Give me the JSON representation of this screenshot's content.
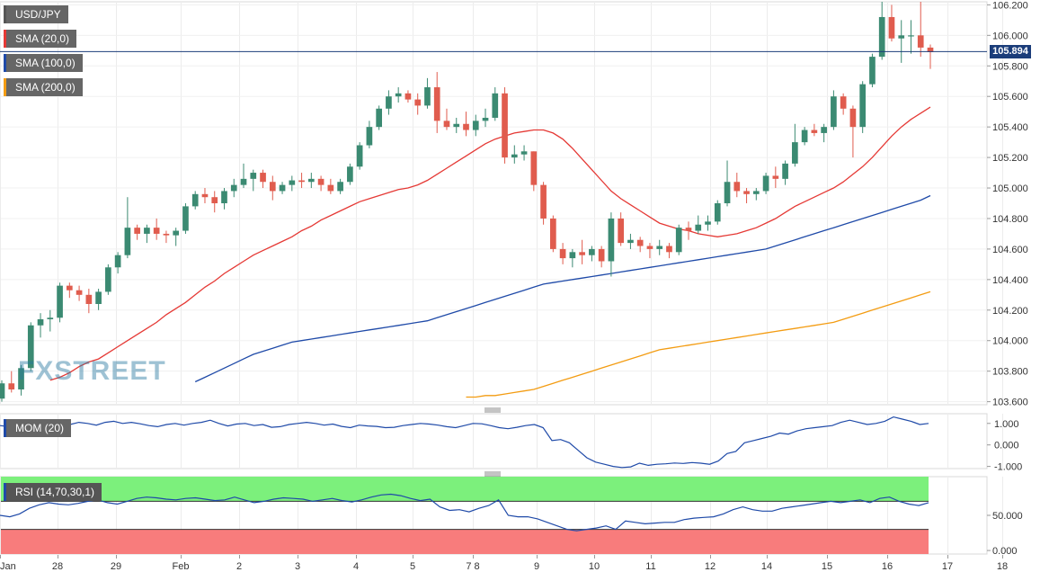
{
  "chart_data": [
    {
      "type": "candlestick",
      "panel": "price",
      "title": "USD/JPY",
      "indicators": [
        {
          "name": "SMA (20,0)",
          "color": "#e53935"
        },
        {
          "name": "SMA (100,0)",
          "color": "#1f4aa8"
        },
        {
          "name": "SMA (200,0)",
          "color": "#f39c12"
        }
      ],
      "ylim": [
        103.58,
        106.22
      ],
      "y_ticks": [
        "106.200",
        "106.000",
        "105.800",
        "105.600",
        "105.400",
        "105.200",
        "105.000",
        "104.800",
        "104.600",
        "104.400",
        "104.200",
        "104.000",
        "103.800",
        "103.600"
      ],
      "x_ticks": [
        "Jan",
        "28",
        "29",
        "Feb",
        "2",
        "3",
        "4",
        "5",
        "7 8",
        "9",
        "10",
        "11",
        "12",
        "14",
        "15",
        "16",
        "17",
        "18"
      ],
      "current_price": "105.894",
      "up_color": "#3b8a72",
      "down_color": "#e05c4e",
      "candles": [
        [
          103.62,
          103.74,
          103.6,
          103.72
        ],
        [
          103.72,
          103.8,
          103.66,
          103.68
        ],
        [
          103.68,
          103.84,
          103.64,
          103.82
        ],
        [
          103.82,
          104.12,
          103.8,
          104.1
        ],
        [
          104.1,
          104.18,
          104.02,
          104.14
        ],
        [
          104.14,
          104.2,
          104.06,
          104.15
        ],
        [
          104.15,
          104.38,
          104.12,
          104.36
        ],
        [
          104.36,
          104.38,
          104.28,
          104.33
        ],
        [
          104.33,
          104.36,
          104.26,
          104.3
        ],
        [
          104.3,
          104.34,
          104.18,
          104.24
        ],
        [
          104.24,
          104.34,
          104.2,
          104.32
        ],
        [
          104.32,
          104.5,
          104.3,
          104.48
        ],
        [
          104.48,
          104.58,
          104.44,
          104.56
        ],
        [
          104.56,
          104.94,
          104.54,
          104.74
        ],
        [
          104.74,
          104.76,
          104.66,
          104.7
        ],
        [
          104.7,
          104.76,
          104.64,
          104.74
        ],
        [
          104.74,
          104.8,
          104.66,
          104.7
        ],
        [
          104.7,
          104.72,
          104.64,
          104.69
        ],
        [
          104.69,
          104.74,
          104.62,
          104.72
        ],
        [
          104.72,
          104.9,
          104.7,
          104.88
        ],
        [
          104.88,
          104.98,
          104.86,
          104.96
        ],
        [
          104.96,
          105.0,
          104.9,
          104.94
        ],
        [
          104.94,
          104.98,
          104.84,
          104.9
        ],
        [
          104.9,
          105.0,
          104.86,
          104.98
        ],
        [
          104.98,
          105.06,
          104.94,
          105.02
        ],
        [
          105.02,
          105.16,
          105.0,
          105.06
        ],
        [
          105.06,
          105.12,
          104.98,
          105.1
        ],
        [
          105.1,
          105.12,
          105.0,
          105.04
        ],
        [
          105.04,
          105.08,
          104.92,
          104.98
        ],
        [
          104.98,
          105.04,
          104.96,
          105.02
        ],
        [
          105.02,
          105.08,
          104.98,
          105.05
        ],
        [
          105.05,
          105.1,
          105.0,
          105.04
        ],
        [
          105.04,
          105.1,
          105.0,
          105.06
        ],
        [
          105.06,
          105.08,
          104.98,
          105.02
        ],
        [
          105.02,
          105.06,
          104.96,
          104.98
        ],
        [
          104.98,
          105.06,
          104.96,
          105.04
        ],
        [
          105.04,
          105.16,
          105.02,
          105.14
        ],
        [
          105.14,
          105.3,
          105.12,
          105.28
        ],
        [
          105.28,
          105.44,
          105.26,
          105.4
        ],
        [
          105.4,
          105.54,
          105.38,
          105.52
        ],
        [
          105.52,
          105.64,
          105.48,
          105.6
        ],
        [
          105.6,
          105.66,
          105.56,
          105.62
        ],
        [
          105.62,
          105.64,
          105.56,
          105.58
        ],
        [
          105.58,
          105.62,
          105.48,
          105.54
        ],
        [
          105.54,
          105.72,
          105.52,
          105.66
        ],
        [
          105.66,
          105.76,
          105.36,
          105.44
        ],
        [
          105.44,
          105.52,
          105.38,
          105.4
        ],
        [
          105.4,
          105.46,
          105.36,
          105.42
        ],
        [
          105.42,
          105.5,
          105.34,
          105.38
        ],
        [
          105.38,
          105.48,
          105.34,
          105.44
        ],
        [
          105.44,
          105.52,
          105.4,
          105.46
        ],
        [
          105.46,
          105.66,
          105.44,
          105.62
        ],
        [
          105.62,
          105.66,
          105.16,
          105.2
        ],
        [
          105.2,
          105.28,
          105.16,
          105.22
        ],
        [
          105.22,
          105.28,
          105.18,
          105.24
        ],
        [
          105.24,
          105.24,
          104.98,
          105.02
        ],
        [
          105.02,
          105.04,
          104.76,
          104.8
        ],
        [
          104.8,
          104.82,
          104.58,
          104.6
        ],
        [
          104.6,
          104.64,
          104.5,
          104.54
        ],
        [
          104.54,
          104.6,
          104.48,
          104.58
        ],
        [
          104.58,
          104.66,
          104.5,
          104.56
        ],
        [
          104.56,
          104.62,
          104.52,
          104.6
        ],
        [
          104.6,
          104.62,
          104.48,
          104.52
        ],
        [
          104.52,
          104.84,
          104.42,
          104.8
        ],
        [
          104.8,
          104.84,
          104.62,
          104.64
        ],
        [
          104.64,
          104.7,
          104.6,
          104.66
        ],
        [
          104.66,
          104.68,
          104.58,
          104.62
        ],
        [
          104.62,
          104.64,
          104.54,
          104.6
        ],
        [
          104.6,
          104.66,
          104.56,
          104.62
        ],
        [
          104.62,
          104.64,
          104.54,
          104.58
        ],
        [
          104.58,
          104.76,
          104.56,
          104.74
        ],
        [
          104.74,
          104.78,
          104.66,
          104.72
        ],
        [
          104.72,
          104.82,
          104.7,
          104.76
        ],
        [
          104.76,
          104.82,
          104.72,
          104.78
        ],
        [
          104.78,
          104.92,
          104.76,
          104.9
        ],
        [
          104.9,
          105.18,
          104.88,
          105.04
        ],
        [
          105.04,
          105.1,
          104.94,
          104.98
        ],
        [
          104.98,
          105.0,
          104.9,
          104.96
        ],
        [
          104.96,
          105.0,
          104.92,
          104.98
        ],
        [
          104.98,
          105.1,
          104.96,
          105.08
        ],
        [
          105.08,
          105.14,
          105.0,
          105.06
        ],
        [
          105.06,
          105.18,
          105.02,
          105.16
        ],
        [
          105.16,
          105.42,
          105.14,
          105.3
        ],
        [
          105.3,
          105.4,
          105.28,
          105.38
        ],
        [
          105.38,
          105.42,
          105.34,
          105.36
        ],
        [
          105.36,
          105.42,
          105.3,
          105.4
        ],
        [
          105.4,
          105.64,
          105.38,
          105.6
        ],
        [
          105.6,
          105.62,
          105.48,
          105.52
        ],
        [
          105.52,
          105.54,
          105.2,
          105.4
        ],
        [
          105.4,
          105.7,
          105.36,
          105.68
        ],
        [
          105.68,
          105.88,
          105.66,
          105.86
        ],
        [
          105.86,
          106.22,
          105.84,
          106.12
        ],
        [
          106.12,
          106.2,
          105.96,
          105.98
        ],
        [
          105.98,
          106.1,
          105.82,
          106.0
        ],
        [
          106.0,
          106.1,
          105.88,
          106.0
        ],
        [
          106.0,
          106.22,
          105.86,
          105.92
        ],
        [
          105.92,
          105.94,
          105.78,
          105.89
        ]
      ],
      "series": [
        {
          "name": "SMA (20,0)",
          "values": [
            103.74,
            103.76,
            103.79,
            103.83,
            103.86,
            103.88,
            103.92,
            103.96,
            104.0,
            104.04,
            104.08,
            104.12,
            104.17,
            104.21,
            104.25,
            104.3,
            104.35,
            104.39,
            104.44,
            104.48,
            104.52,
            104.56,
            104.59,
            104.62,
            104.65,
            104.68,
            104.72,
            104.75,
            104.79,
            104.82,
            104.85,
            104.88,
            104.91,
            104.93,
            104.95,
            104.97,
            104.99,
            105.0,
            105.02,
            105.05,
            105.09,
            105.13,
            105.17,
            105.21,
            105.25,
            105.29,
            105.32,
            105.34,
            105.36,
            105.37,
            105.38,
            105.38,
            105.36,
            105.32,
            105.26,
            105.19,
            105.12,
            105.05,
            104.98,
            104.93,
            104.89,
            104.85,
            104.81,
            104.77,
            104.75,
            104.73,
            104.72,
            104.7,
            104.69,
            104.68,
            104.69,
            104.7,
            104.72,
            104.74,
            104.77,
            104.8,
            104.84,
            104.88,
            104.91,
            104.94,
            104.97,
            105.0,
            105.04,
            105.09,
            105.14,
            105.2,
            105.27,
            105.34,
            105.4,
            105.45,
            105.49,
            105.53
          ]
        },
        {
          "name": "SMA (100,0)",
          "values": [
            103.73,
            103.76,
            103.79,
            103.82,
            103.85,
            103.88,
            103.91,
            103.93,
            103.95,
            103.97,
            103.99,
            104.0,
            104.01,
            104.02,
            104.03,
            104.04,
            104.05,
            104.06,
            104.07,
            104.08,
            104.09,
            104.1,
            104.11,
            104.12,
            104.13,
            104.15,
            104.17,
            104.19,
            104.21,
            104.23,
            104.25,
            104.27,
            104.29,
            104.31,
            104.33,
            104.35,
            104.37,
            104.38,
            104.39,
            104.4,
            104.41,
            104.42,
            104.43,
            104.44,
            104.45,
            104.46,
            104.47,
            104.48,
            104.49,
            104.5,
            104.51,
            104.52,
            104.53,
            104.54,
            104.55,
            104.56,
            104.57,
            104.58,
            104.59,
            104.6,
            104.62,
            104.64,
            104.66,
            104.68,
            104.7,
            104.72,
            104.74,
            104.76,
            104.78,
            104.8,
            104.82,
            104.84,
            104.86,
            104.88,
            104.9,
            104.92,
            104.95
          ]
        },
        {
          "name": "SMA (200,0)",
          "values": [
            103.63,
            103.63,
            103.64,
            103.64,
            103.65,
            103.66,
            103.67,
            103.68,
            103.7,
            103.72,
            103.74,
            103.76,
            103.78,
            103.8,
            103.82,
            103.84,
            103.86,
            103.88,
            103.9,
            103.92,
            103.94,
            103.95,
            103.96,
            103.97,
            103.98,
            103.99,
            104.0,
            104.01,
            104.02,
            104.03,
            104.04,
            104.05,
            104.06,
            104.07,
            104.08,
            104.09,
            104.1,
            104.11,
            104.12,
            104.14,
            104.16,
            104.18,
            104.2,
            104.22,
            104.24,
            104.26,
            104.28,
            104.3,
            104.32
          ]
        }
      ]
    },
    {
      "type": "line",
      "panel": "momentum",
      "title": "MOM (20)",
      "color": "#1f4aa8",
      "ylim": [
        -1.1,
        1.45
      ],
      "y_ticks": [
        "1.000",
        "0.000",
        "-1.000"
      ],
      "values": [
        0.9,
        0.85,
        0.95,
        0.92,
        1.0,
        0.95,
        0.9,
        1.0,
        0.95,
        1.05,
        1.0,
        0.92,
        1.05,
        1.1,
        1.0,
        1.05,
        0.98,
        0.9,
        0.85,
        0.95,
        1.0,
        0.92,
        1.0,
        1.05,
        1.15,
        1.0,
        0.88,
        0.97,
        1.0,
        0.9,
        0.95,
        0.82,
        0.85,
        0.95,
        1.0,
        1.05,
        1.0,
        0.92,
        0.97,
        0.86,
        0.8,
        0.92,
        0.88,
        0.86,
        0.8,
        0.82,
        0.9,
        0.95,
        1.0,
        0.97,
        0.92,
        0.85,
        0.8,
        0.9,
        1.0,
        0.98,
        0.9,
        0.8,
        0.75,
        0.82,
        0.9,
        0.95,
        0.8,
        0.2,
        0.25,
        0.1,
        -0.25,
        -0.6,
        -0.8,
        -0.9,
        -1.0,
        -1.05,
        -1.02,
        -0.85,
        -0.95,
        -0.9,
        -0.88,
        -0.84,
        -0.86,
        -0.82,
        -0.85,
        -0.9,
        -0.75,
        -0.4,
        -0.3,
        0.1,
        0.2,
        0.3,
        0.4,
        0.55,
        0.5,
        0.65,
        0.75,
        0.8,
        0.85,
        0.9,
        1.05,
        1.15,
        1.05,
        0.95,
        1.0,
        1.1,
        1.3,
        1.2,
        1.1,
        0.95,
        1.0
      ]
    },
    {
      "type": "line",
      "panel": "rsi",
      "title": "RSI (14,70,30,1)",
      "color": "#1f4aa8",
      "overbought": 70,
      "oversold": 30,
      "overbought_color": "#7cf07c",
      "oversold_color": "#f87c7c",
      "ylim": [
        -5,
        105
      ],
      "y_ticks": [
        "50.000",
        "0.000"
      ],
      "values": [
        50,
        48,
        52,
        60,
        65,
        68,
        66,
        65,
        67,
        70,
        72,
        68,
        66,
        70,
        74,
        76,
        75,
        73,
        72,
        74,
        75,
        73,
        71,
        72,
        76,
        72,
        68,
        70,
        73,
        75,
        74,
        73,
        70,
        72,
        74,
        71,
        69,
        72,
        76,
        79,
        80,
        78,
        74,
        71,
        73,
        62,
        57,
        58,
        55,
        60,
        64,
        72,
        50,
        48,
        48,
        45,
        40,
        35,
        30,
        28,
        30,
        32,
        35,
        30,
        42,
        40,
        38,
        39,
        40,
        40,
        44,
        46,
        47,
        48,
        52,
        58,
        62,
        58,
        56,
        56,
        60,
        62,
        64,
        66,
        68,
        70,
        68,
        70,
        72,
        68,
        74,
        76,
        70,
        66,
        64,
        68
      ]
    }
  ]
}
